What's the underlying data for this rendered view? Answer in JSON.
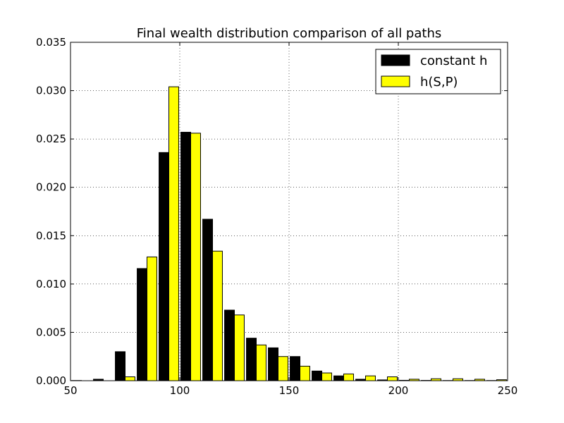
{
  "chart_data": {
    "type": "bar",
    "title": "Final wealth distribution comparison of all paths",
    "xlabel": "",
    "ylabel": "",
    "xlim": [
      50,
      250
    ],
    "ylim": [
      0,
      0.035
    ],
    "xticks": [
      "50",
      "100",
      "150",
      "200",
      "250"
    ],
    "yticks": [
      "0.000",
      "0.005",
      "0.010",
      "0.015",
      "0.020",
      "0.025",
      "0.030",
      "0.035"
    ],
    "grid": true,
    "legend_position": "top-right",
    "bin_width": 10,
    "bin_starts": [
      50,
      60,
      70,
      80,
      90,
      100,
      110,
      120,
      130,
      140,
      150,
      160,
      170,
      180,
      190,
      200,
      210,
      220,
      230,
      240
    ],
    "series": [
      {
        "name": "constant h",
        "color": "#000000",
        "values": [
          2e-05,
          0.00015,
          0.003,
          0.0116,
          0.0236,
          0.0257,
          0.0167,
          0.0073,
          0.0044,
          0.0034,
          0.0025,
          0.001,
          0.0005,
          0.00015,
          8e-05,
          4e-05,
          3e-05,
          2e-05,
          2e-05,
          2e-05
        ]
      },
      {
        "name": "h(S,P)",
        "color": "#ffff00",
        "values": [
          0.0,
          0.0,
          0.0004,
          0.0128,
          0.0304,
          0.0256,
          0.0134,
          0.0068,
          0.0037,
          0.0025,
          0.0015,
          0.0008,
          0.0007,
          0.0005,
          0.0004,
          0.00015,
          0.0002,
          0.0002,
          0.00015,
          0.0001
        ]
      }
    ]
  }
}
